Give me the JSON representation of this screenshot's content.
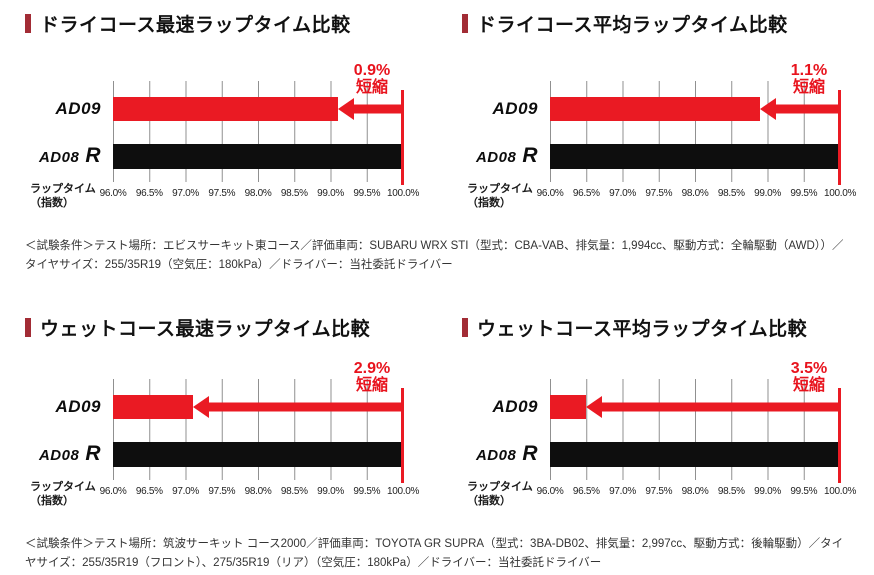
{
  "colors": {
    "accent_red": "#ea1a23",
    "title_marker_red": "#a22c35",
    "bar_black": "#0e0e0e",
    "gridline_gray": "#8f8f8f",
    "caption_text": "#333333"
  },
  "tires": {
    "ad09": "AD09",
    "ad08": "AD08",
    "ad08_suffix": "R"
  },
  "axis": {
    "label_line1": "ラップタイム",
    "label_line2": "（指数）"
  },
  "charts": [
    {
      "title": "ドライコース最速ラップタイム比較",
      "reduction_value": "0.9%",
      "reduction_word": "短縮"
    },
    {
      "title": "ドライコース平均ラップタイム比較",
      "reduction_value": "1.1%",
      "reduction_word": "短縮"
    },
    {
      "title": "ウェットコース最速ラップタイム比較",
      "reduction_value": "2.9%",
      "reduction_word": "短縮"
    },
    {
      "title": "ウェットコース平均ラップタイム比較",
      "reduction_value": "3.5%",
      "reduction_word": "短縮"
    }
  ],
  "captions": {
    "dry": "＜試験条件＞テスト場所：エビスサーキット東コース／評価車両：SUBARU WRX STI（型式：CBA-VAB、排気量：1,994cc、駆動方式：全輪駆動（AWD））／タイヤサイズ：255/35R19（空気圧：180kPa）／ドライバー：当社委託ドライバー",
    "wet": "＜試験条件＞テスト場所：筑波サーキット コース2000／評価車両：TOYOTA GR SUPRA（型式：3BA-DB02、排気量：2,997cc、駆動方式：後輪駆動）／タイヤサイズ：255/35R19（フロント）、275/35R19（リア）（空気圧：180kPa）／ドライバー：当社委託ドライバー"
  },
  "chart_data": [
    {
      "type": "bar",
      "orientation": "horizontal",
      "title": "ドライコース最速ラップタイム比較",
      "categories": [
        "AD09",
        "AD08 R"
      ],
      "values": [
        99.1,
        100.0
      ],
      "xlabel": "ラップタイム（指数）",
      "xlim": [
        96.0,
        100.0
      ],
      "xticks": [
        "96.0%",
        "96.5%",
        "97.0%",
        "97.5%",
        "98.0%",
        "98.5%",
        "99.0%",
        "99.5%",
        "100.0%"
      ],
      "annotation": "0.9%短縮",
      "series_colors": {
        "AD09": "#ea1a23",
        "AD08 R": "#0e0e0e"
      },
      "grid": true
    },
    {
      "type": "bar",
      "orientation": "horizontal",
      "title": "ドライコース平均ラップタイム比較",
      "categories": [
        "AD09",
        "AD08 R"
      ],
      "values": [
        98.9,
        100.0
      ],
      "xlabel": "ラップタイム（指数）",
      "xlim": [
        96.0,
        100.0
      ],
      "xticks": [
        "96.0%",
        "96.5%",
        "97.0%",
        "97.5%",
        "98.0%",
        "98.5%",
        "99.0%",
        "99.5%",
        "100.0%"
      ],
      "annotation": "1.1%短縮",
      "series_colors": {
        "AD09": "#ea1a23",
        "AD08 R": "#0e0e0e"
      },
      "grid": true
    },
    {
      "type": "bar",
      "orientation": "horizontal",
      "title": "ウェットコース最速ラップタイム比較",
      "categories": [
        "AD09",
        "AD08 R"
      ],
      "values": [
        97.1,
        100.0
      ],
      "xlabel": "ラップタイム（指数）",
      "xlim": [
        96.0,
        100.0
      ],
      "xticks": [
        "96.0%",
        "96.5%",
        "97.0%",
        "97.5%",
        "98.0%",
        "98.5%",
        "99.0%",
        "99.5%",
        "100.0%"
      ],
      "annotation": "2.9%短縮",
      "series_colors": {
        "AD09": "#ea1a23",
        "AD08 R": "#0e0e0e"
      },
      "grid": true
    },
    {
      "type": "bar",
      "orientation": "horizontal",
      "title": "ウェットコース平均ラップタイム比較",
      "categories": [
        "AD09",
        "AD08 R"
      ],
      "values": [
        96.5,
        100.0
      ],
      "xlabel": "ラップタイム（指数）",
      "xlim": [
        96.0,
        100.0
      ],
      "xticks": [
        "96.0%",
        "96.5%",
        "97.0%",
        "97.5%",
        "98.0%",
        "98.5%",
        "99.0%",
        "99.5%",
        "100.0%"
      ],
      "annotation": "3.5%短縮",
      "series_colors": {
        "AD09": "#ea1a23",
        "AD08 R": "#0e0e0e"
      },
      "grid": true
    }
  ]
}
